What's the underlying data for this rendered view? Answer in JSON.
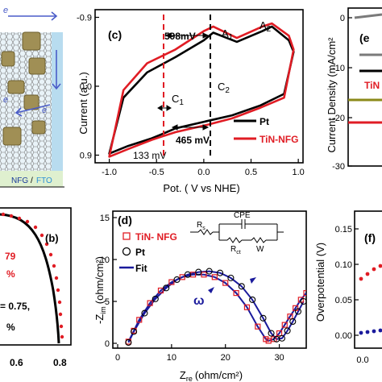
{
  "panels": {
    "a": {
      "legend": [
        "NFG",
        "/",
        "FTO"
      ],
      "electron_label": "e"
    },
    "b": {
      "label": "(b)",
      "texts": [
        "79",
        "%",
        "= 0.75,",
        "%"
      ],
      "x_ticks": [
        "0.6",
        "0.8"
      ]
    },
    "c": {
      "label": "(c)",
      "ylabel": "Current (a.u.)",
      "xlabel": "Pot. ( V vs NHE)",
      "x_ticks": [
        "-1.0",
        "-0.5",
        "0.0",
        "0.5",
        "1.0"
      ],
      "y_ticks": [
        "-0.9",
        "0.0",
        "0.9"
      ],
      "annotations": {
        "dE1": "598mV",
        "A1": "A",
        "A1_sub": "1",
        "A2": "A",
        "A2_sub": "2",
        "C1": "C",
        "C1_sub": "1",
        "C2": "C",
        "C2_sub": "2",
        "dE2": "465 mV",
        "dE3": "133 mV"
      },
      "legend": [
        "Pt",
        "TiN-NFG"
      ]
    },
    "d": {
      "label": "(d)",
      "ylabel": "-Z",
      "ylabel_sub": "im",
      "ylabel_unit": "(ohm/cm²)",
      "xlabel": "Z",
      "xlabel_sub": "re",
      "xlabel_unit": "(ohm/cm²)",
      "x_ticks": [
        "0",
        "10",
        "20",
        "30"
      ],
      "y_ticks": [
        "0",
        "5",
        "10",
        "15"
      ],
      "legend": [
        "TiN- NFG",
        "Pt",
        "Fit"
      ],
      "omega": "ω",
      "circuit": {
        "rs": "R",
        "rs_sub": "s",
        "cpe": "CPE",
        "rct": "R",
        "rct_sub": "ct",
        "w": "W"
      }
    },
    "e": {
      "label": "(e",
      "ylabel": "Current Density (mA/cm²",
      "y_ticks": [
        "0",
        "-10",
        "-20",
        "-30"
      ],
      "legend_partial": "TiN"
    },
    "f": {
      "label": "(f)",
      "ylabel": "Overpotential (V)",
      "y_ticks": [
        "0.00",
        "0.05",
        "0.10",
        "0.15"
      ],
      "x_ticks": [
        "0.0"
      ]
    }
  },
  "colors": {
    "pt": "#000000",
    "tin_nfg": "#e01c24",
    "fit": "#1a1a9c",
    "olive": "#8b8a1a",
    "tin_particle": "#9b8a4e",
    "graphene": "#888888",
    "substrate": "#cfe6b8"
  },
  "chart_data": [
    {
      "type": "line",
      "title": "(c)",
      "xlabel": "Pot. ( V vs NHE)",
      "ylabel": "Current (a.u.)",
      "xlim": [
        -1.15,
        1.05
      ],
      "ylim": [
        1.0,
        -1.0
      ],
      "series": [
        {
          "name": "Pt",
          "x": [
            -1.0,
            -0.85,
            -0.6,
            -0.3,
            0.0,
            0.1,
            0.35,
            0.62,
            0.72,
            0.9,
            0.95,
            0.85,
            0.6,
            0.3,
            0.05,
            -0.3,
            -0.45,
            -0.55,
            -0.8,
            -1.0
          ],
          "y": [
            0.88,
            0.15,
            -0.18,
            -0.38,
            -0.6,
            -0.7,
            -0.58,
            -0.72,
            -0.78,
            -0.6,
            -0.45,
            0.1,
            0.25,
            0.38,
            0.45,
            0.55,
            0.63,
            0.68,
            0.78,
            0.88
          ]
        },
        {
          "name": "TiN-NFG",
          "x": [
            -1.0,
            -0.85,
            -0.6,
            -0.3,
            0.0,
            0.1,
            0.35,
            0.62,
            0.72,
            0.9,
            0.95,
            0.85,
            0.6,
            0.3,
            0.05,
            -0.3,
            -0.45,
            -0.55,
            -0.8,
            -1.0
          ],
          "y": [
            0.92,
            0.05,
            -0.3,
            -0.48,
            -0.72,
            -0.78,
            -0.63,
            -0.78,
            -0.82,
            -0.66,
            -0.48,
            0.15,
            0.28,
            0.42,
            0.5,
            0.6,
            0.66,
            0.7,
            0.82,
            0.92
          ]
        }
      ]
    },
    {
      "type": "scatter",
      "title": "(d)",
      "xlabel": "Z re (ohm/cm²)",
      "ylabel": "-Z im (ohm/cm²)",
      "xlim": [
        0,
        35
      ],
      "ylim": [
        0,
        15
      ],
      "series": [
        {
          "name": "TiN- NFG",
          "x": [
            2,
            3,
            4,
            6,
            8,
            10,
            12,
            14,
            16,
            18,
            20,
            22,
            24,
            26,
            27.5,
            28,
            29,
            30,
            31,
            32,
            33,
            34,
            35
          ],
          "y": [
            0.2,
            1.5,
            2.8,
            4.8,
            6.3,
            7.3,
            7.9,
            8.2,
            8.2,
            7.9,
            7.2,
            6.0,
            4.3,
            2.0,
            0.5,
            0.3,
            0.5,
            1.2,
            2.2,
            3.2,
            4.2,
            5.2,
            6.0
          ]
        },
        {
          "name": "Pt",
          "x": [
            2,
            3,
            5,
            7,
            9,
            11,
            13,
            15,
            17,
            19,
            21,
            23,
            25,
            27,
            28.5,
            29.5,
            30.5,
            31.5,
            32.5,
            33.5,
            34.5
          ],
          "y": [
            0.1,
            1.4,
            3.6,
            5.3,
            6.6,
            7.6,
            8.2,
            8.5,
            8.6,
            8.4,
            7.8,
            6.8,
            5.2,
            3.0,
            1.2,
            0.5,
            0.6,
            1.5,
            2.6,
            3.8,
            5.0
          ]
        }
      ]
    }
  ]
}
